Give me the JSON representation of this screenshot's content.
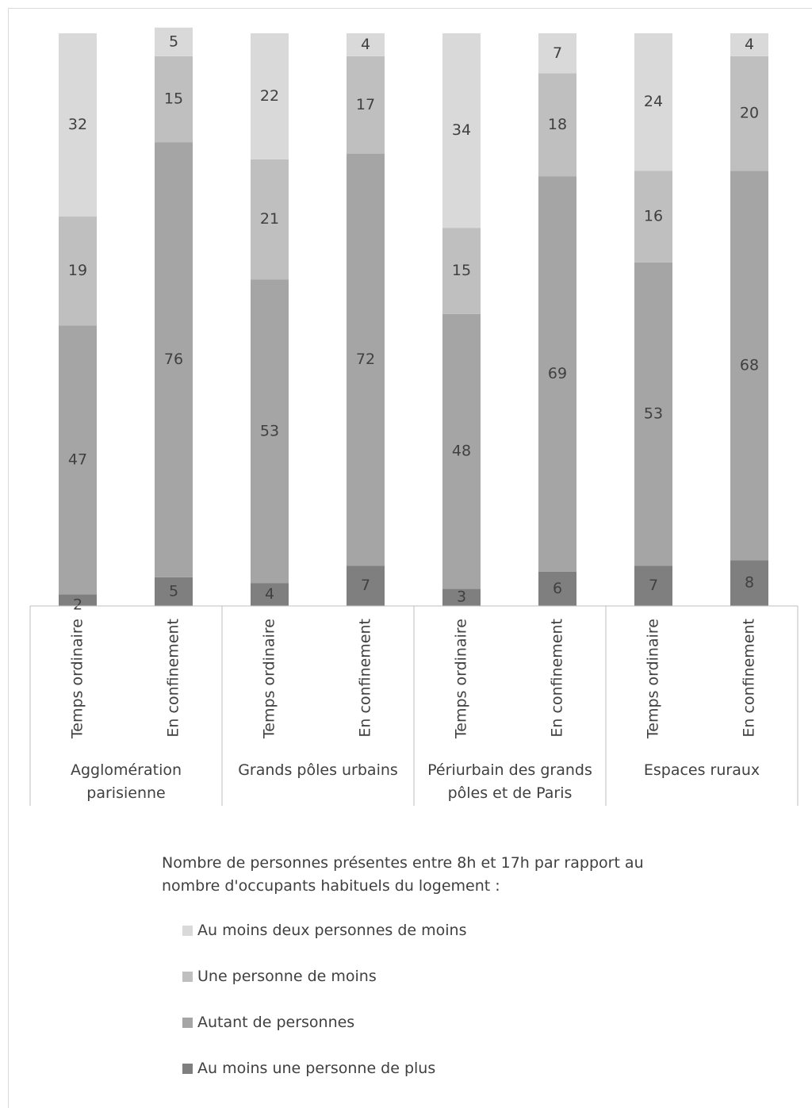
{
  "chart_data": {
    "type": "stacked_bar",
    "categories": [
      "Temps ordinaire",
      "En confinement",
      "Temps ordinaire",
      "En confinement",
      "Temps ordinaire",
      "En confinement",
      "Temps ordinaire",
      "En confinement"
    ],
    "groups": [
      "Agglomération parisienne",
      "Grands pôles urbains",
      "Périurbain des grands pôles et de Paris",
      "Espaces ruraux"
    ],
    "ylim": [
      0,
      100
    ],
    "legend_title": "Nombre de personnes présentes entre 8h et 17h par rapport au nombre d'occupants habituels du logement :",
    "series": [
      {
        "name": "Au moins une personne de plus",
        "color": "#7f7f7f",
        "values": [
          2,
          5,
          4,
          7,
          3,
          6,
          7,
          8
        ]
      },
      {
        "name": "Autant de personnes",
        "color": "#a5a5a5",
        "values": [
          47,
          76,
          53,
          72,
          48,
          69,
          53,
          68
        ]
      },
      {
        "name": "Une personne de moins",
        "color": "#bfbfbf",
        "values": [
          19,
          15,
          21,
          17,
          15,
          18,
          16,
          20
        ]
      },
      {
        "name": "Au moins deux personnes de moins",
        "color": "#d9d9d9",
        "values": [
          32,
          5,
          22,
          4,
          34,
          7,
          24,
          4
        ]
      }
    ]
  }
}
